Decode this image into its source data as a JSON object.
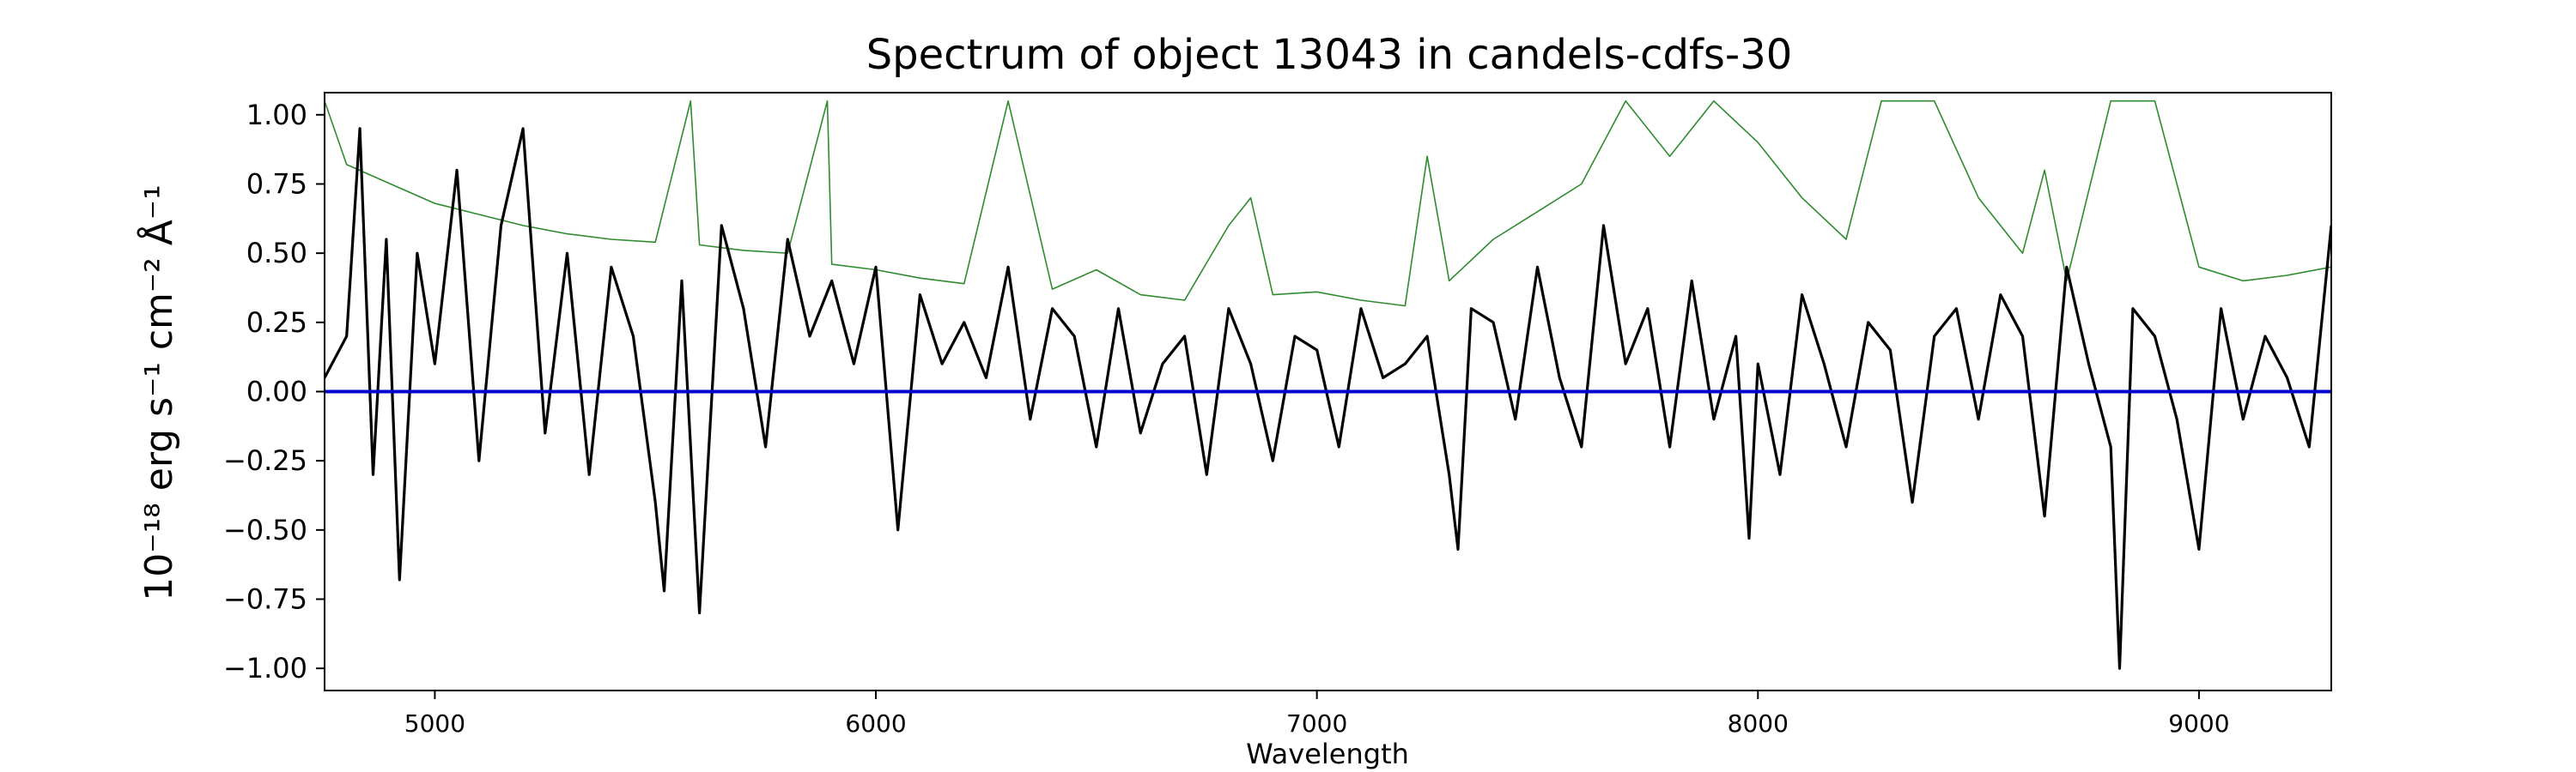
{
  "chart_data": {
    "type": "line",
    "title": "Spectrum of object 13043 in candels-cdfs-30",
    "xlabel": "Wavelength",
    "ylabel": "10⁻¹⁸ erg s⁻¹ cm⁻² Å⁻¹",
    "xlim": [
      4750,
      9300
    ],
    "ylim": [
      -1.08,
      1.08
    ],
    "x_ticks": [
      5000,
      6000,
      7000,
      8000,
      9000
    ],
    "x_tick_labels": [
      "5000",
      "6000",
      "7000",
      "8000",
      "9000"
    ],
    "y_ticks": [
      -1.0,
      -0.75,
      -0.5,
      -0.25,
      0.0,
      0.25,
      0.5,
      0.75,
      1.0
    ],
    "y_tick_labels": [
      "−1.00",
      "−0.75",
      "−0.50",
      "−0.25",
      "0.00",
      "0.25",
      "0.50",
      "0.75",
      "1.00"
    ],
    "grid": false,
    "series_colors": {
      "flux": "#000000",
      "error": "#2e8b2e",
      "model": "#0000cc"
    },
    "series": [
      {
        "id": "flux",
        "x": [
          4750,
          4800,
          4830,
          4860,
          4890,
          4920,
          4960,
          5000,
          5050,
          5100,
          5150,
          5200,
          5250,
          5300,
          5350,
          5400,
          5450,
          5500,
          5520,
          5560,
          5600,
          5650,
          5700,
          5750,
          5800,
          5850,
          5900,
          5950,
          6000,
          6050,
          6100,
          6150,
          6200,
          6250,
          6300,
          6350,
          6400,
          6450,
          6500,
          6550,
          6600,
          6650,
          6700,
          6750,
          6800,
          6850,
          6900,
          6950,
          7000,
          7050,
          7100,
          7150,
          7200,
          7250,
          7300,
          7320,
          7350,
          7400,
          7450,
          7500,
          7550,
          7600,
          7650,
          7700,
          7750,
          7800,
          7850,
          7900,
          7950,
          7980,
          8000,
          8050,
          8100,
          8150,
          8200,
          8250,
          8300,
          8350,
          8400,
          8450,
          8500,
          8550,
          8600,
          8650,
          8700,
          8750,
          8800,
          8820,
          8850,
          8900,
          8950,
          9000,
          9050,
          9100,
          9150,
          9200,
          9250,
          9300
        ],
        "y": [
          0.05,
          0.2,
          0.95,
          -0.3,
          0.55,
          -0.68,
          0.5,
          0.1,
          0.8,
          -0.25,
          0.6,
          0.95,
          -0.15,
          0.5,
          -0.3,
          0.45,
          0.2,
          -0.4,
          -0.72,
          0.4,
          -0.8,
          0.6,
          0.3,
          -0.2,
          0.55,
          0.2,
          0.4,
          0.1,
          0.45,
          -0.5,
          0.35,
          0.1,
          0.25,
          0.05,
          0.45,
          -0.1,
          0.3,
          0.2,
          -0.2,
          0.3,
          -0.15,
          0.1,
          0.2,
          -0.3,
          0.3,
          0.1,
          -0.25,
          0.2,
          0.15,
          -0.2,
          0.3,
          0.05,
          0.1,
          0.2,
          -0.3,
          -0.57,
          0.3,
          0.25,
          -0.1,
          0.45,
          0.05,
          -0.2,
          0.6,
          0.1,
          0.3,
          -0.2,
          0.4,
          -0.1,
          0.2,
          -0.53,
          0.1,
          -0.3,
          0.35,
          0.1,
          -0.2,
          0.25,
          0.15,
          -0.4,
          0.2,
          0.3,
          -0.1,
          0.35,
          0.2,
          -0.45,
          0.45,
          0.1,
          -0.2,
          -1.0,
          0.3,
          0.2,
          -0.1,
          -0.57,
          0.3,
          -0.1,
          0.2,
          0.05,
          -0.2,
          0.6
        ]
      },
      {
        "id": "error",
        "x": [
          4750,
          4800,
          4900,
          5000,
          5100,
          5200,
          5300,
          5400,
          5500,
          5580,
          5600,
          5700,
          5800,
          5890,
          5900,
          6000,
          6100,
          6200,
          6300,
          6400,
          6500,
          6600,
          6700,
          6800,
          6850,
          6900,
          7000,
          7100,
          7200,
          7250,
          7300,
          7400,
          7500,
          7600,
          7700,
          7800,
          7900,
          8000,
          8100,
          8200,
          8280,
          8350,
          8400,
          8500,
          8600,
          8650,
          8700,
          8800,
          8900,
          9000,
          9100,
          9200,
          9300
        ],
        "y": [
          1.05,
          0.82,
          0.75,
          0.68,
          0.64,
          0.6,
          0.57,
          0.55,
          0.54,
          1.05,
          0.53,
          0.51,
          0.5,
          1.05,
          0.46,
          0.44,
          0.41,
          0.39,
          1.05,
          0.37,
          0.44,
          0.35,
          0.33,
          0.6,
          0.7,
          0.35,
          0.36,
          0.33,
          0.31,
          0.85,
          0.4,
          0.55,
          0.65,
          0.75,
          1.05,
          0.85,
          1.05,
          0.9,
          0.7,
          0.55,
          1.05,
          1.05,
          1.05,
          0.7,
          0.5,
          0.8,
          0.4,
          1.05,
          1.05,
          0.45,
          0.4,
          0.42,
          0.45
        ]
      },
      {
        "id": "model",
        "x": [
          4750,
          9300
        ],
        "y": [
          0.0,
          0.0
        ]
      }
    ]
  }
}
